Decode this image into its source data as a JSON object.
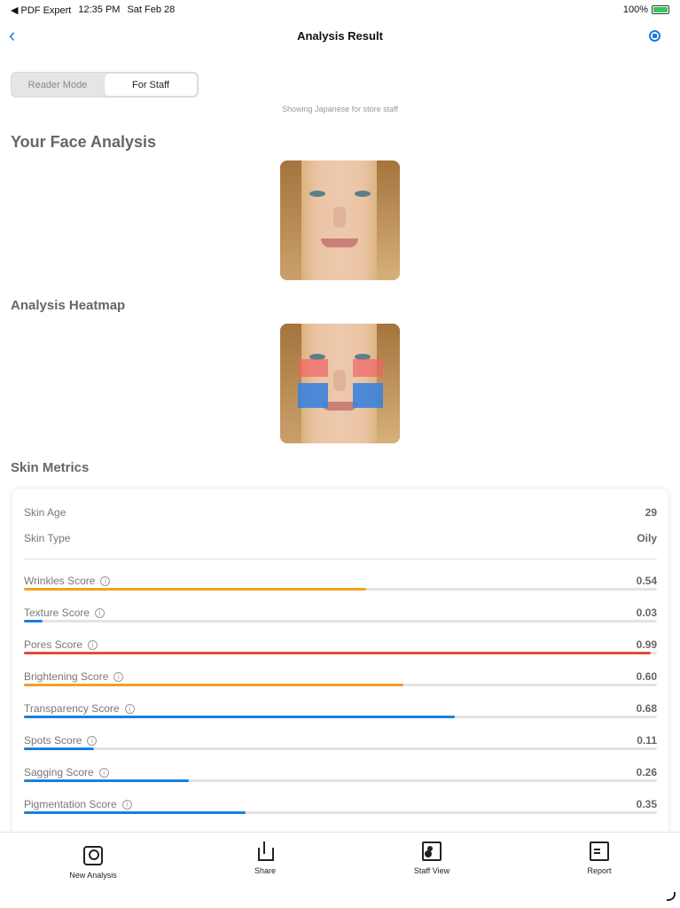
{
  "status_bar": {
    "app": "◀ PDF Expert",
    "time": "12:35 PM",
    "date": "Sat Feb 28",
    "battery": "100%"
  },
  "nav": {
    "title": "Analysis Result"
  },
  "mode_toggle": {
    "reader": "Reader Mode",
    "staff": "For Staff",
    "active": "staff"
  },
  "note": "Showing Japanese for store staff",
  "sections": {
    "face": "Your Face Analysis",
    "heatmap": "Analysis Heatmap",
    "metrics": "Skin Metrics"
  },
  "summary": [
    {
      "label": "Skin Age",
      "value": "29"
    },
    {
      "label": "Skin Type",
      "value": "Oily"
    }
  ],
  "metrics": [
    {
      "label": "Wrinkles Score",
      "value": "0.54",
      "fraction": 0.54,
      "color": "#f0a020"
    },
    {
      "label": "Texture Score",
      "value": "0.03",
      "fraction": 0.03,
      "color": "#1a7fe0"
    },
    {
      "label": "Pores Score",
      "value": "0.99",
      "fraction": 0.99,
      "color": "#e84a3a"
    },
    {
      "label": "Brightening Score",
      "value": "0.60",
      "fraction": 0.6,
      "color": "#f0a020"
    },
    {
      "label": "Transparency Score",
      "value": "0.68",
      "fraction": 0.68,
      "color": "#1a7fe0"
    },
    {
      "label": "Spots Score",
      "value": "0.11",
      "fraction": 0.11,
      "color": "#1a7fe0"
    },
    {
      "label": "Sagging Score",
      "value": "0.26",
      "fraction": 0.26,
      "color": "#1a7fe0"
    },
    {
      "label": "Pigmentation Score",
      "value": "0.35",
      "fraction": 0.35,
      "color": "#1a7fe0"
    }
  ],
  "tabs": [
    {
      "label": "New Analysis",
      "icon": "camera-icon"
    },
    {
      "label": "Share",
      "icon": "share-icon"
    },
    {
      "label": "Staff View",
      "icon": "staff-view-icon"
    },
    {
      "label": "Report",
      "icon": "report-icon"
    }
  ]
}
